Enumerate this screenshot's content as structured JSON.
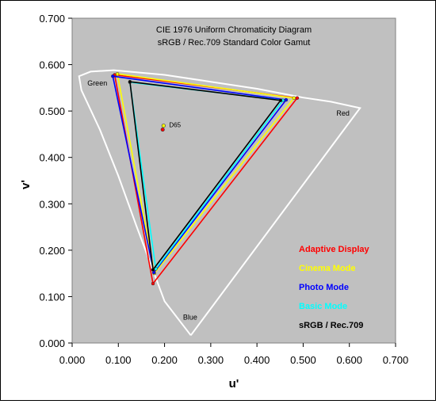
{
  "chart_data": {
    "type": "scatter",
    "title": "CIE 1976 Uniform Chromaticity Diagram",
    "subtitle": "sRGB / Rec.709 Standard Color Gamut",
    "xlabel": "u'",
    "ylabel": "v'",
    "xlim": [
      0,
      0.7
    ],
    "ylim": [
      0,
      0.7
    ],
    "x_ticks": [
      "0.000",
      "0.100",
      "0.200",
      "0.300",
      "0.400",
      "0.500",
      "0.600",
      "0.700"
    ],
    "y_ticks": [
      "0.000",
      "0.100",
      "0.200",
      "0.300",
      "0.400",
      "0.500",
      "0.600",
      "0.700"
    ],
    "grid": false,
    "legend_position": "bottom-right",
    "background_color": "#c0c0c0",
    "annotations": {
      "green": {
        "text": "Green",
        "x": 0.033,
        "y": 0.555
      },
      "red": {
        "text": "Red",
        "x": 0.572,
        "y": 0.49
      },
      "blue": {
        "text": "Blue",
        "x": 0.24,
        "y": 0.05
      },
      "d65": {
        "text": "D65",
        "x": 0.21,
        "y": 0.465
      }
    },
    "spectral_locus": {
      "color": "#ffffff",
      "points": [
        [
          0.2568,
          0.0165
        ],
        [
          0.2,
          0.09
        ],
        [
          0.17,
          0.17
        ],
        [
          0.14,
          0.25
        ],
        [
          0.1,
          0.36
        ],
        [
          0.06,
          0.46
        ],
        [
          0.02,
          0.545
        ],
        [
          0.015,
          0.575
        ],
        [
          0.04,
          0.585
        ],
        [
          0.09,
          0.588
        ],
        [
          0.2,
          0.578
        ],
        [
          0.3,
          0.563
        ],
        [
          0.4,
          0.548
        ],
        [
          0.5,
          0.529
        ],
        [
          0.56,
          0.52
        ],
        [
          0.6231,
          0.5064
        ],
        [
          0.2568,
          0.0165
        ]
      ]
    },
    "series": [
      {
        "name": "Adaptive Display",
        "color": "#ff0000",
        "points": [
          [
            0.092,
            0.578
          ],
          [
            0.487,
            0.528
          ],
          [
            0.175,
            0.128
          ]
        ]
      },
      {
        "name": "Cinema Mode",
        "color": "#ffff00",
        "points": [
          [
            0.098,
            0.58
          ],
          [
            0.48,
            0.528
          ],
          [
            0.178,
            0.15
          ]
        ]
      },
      {
        "name": "Photo Mode",
        "color": "#0000ff",
        "points": [
          [
            0.088,
            0.575
          ],
          [
            0.463,
            0.524
          ],
          [
            0.177,
            0.152
          ]
        ]
      },
      {
        "name": "Basic Mode",
        "color": "#00ffff",
        "points": [
          [
            0.125,
            0.562
          ],
          [
            0.456,
            0.523
          ],
          [
            0.181,
            0.16
          ]
        ]
      },
      {
        "name": "sRGB / Rec.709",
        "color": "#000000",
        "points": [
          [
            0.125,
            0.563
          ],
          [
            0.451,
            0.523
          ],
          [
            0.175,
            0.158
          ]
        ]
      }
    ],
    "whitepoints": [
      {
        "color": "#ffff00",
        "x": 0.1978,
        "y": 0.4683
      },
      {
        "color": "#ff0000",
        "x": 0.196,
        "y": 0.46
      }
    ]
  }
}
